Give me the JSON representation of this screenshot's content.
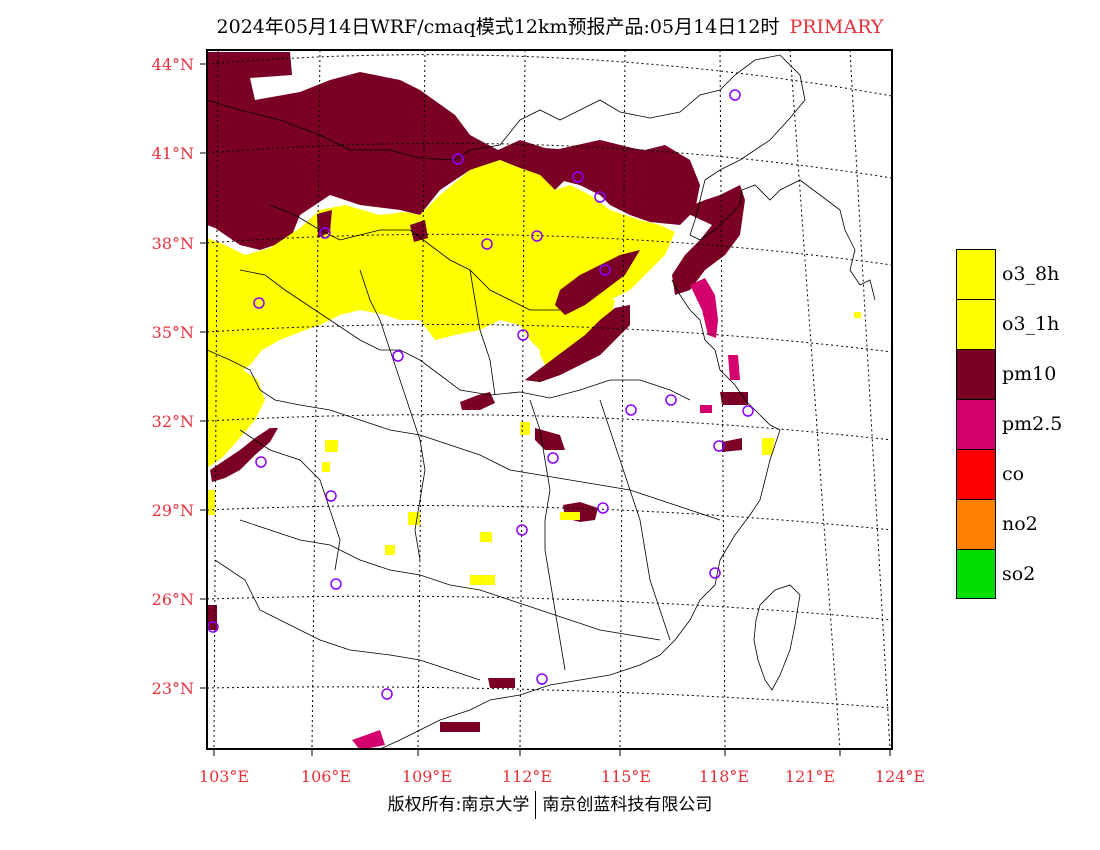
{
  "title": {
    "main": "2024年05月14日WRF/cmaq模式12km预报产品:05月14日12时",
    "tag": "PRIMARY"
  },
  "map": {
    "lat_labels": [
      "44°N",
      "41°N",
      "38°N",
      "35°N",
      "32°N",
      "29°N",
      "26°N",
      "23°N"
    ],
    "lon_labels": [
      "103°E",
      "106°E",
      "109°E",
      "112°E",
      "115°E",
      "118°E",
      "121°E",
      "124°E"
    ],
    "colors": {
      "o3_8h": "#ffff00",
      "o3_1h": "#ffff00",
      "pm10": "#7a0026",
      "pm25": "#d4006e",
      "co": "#ff0000",
      "no2": "#ff7f00",
      "so2": "#00dd00",
      "station": "#8a00ff"
    }
  },
  "legend": [
    {
      "label": "o3_8h",
      "color": "#ffff00"
    },
    {
      "label": "o3_1h",
      "color": "#ffff00"
    },
    {
      "label": "pm10",
      "color": "#7a0026"
    },
    {
      "label": "pm2.5",
      "color": "#d4006e"
    },
    {
      "label": "co",
      "color": "#ff0000"
    },
    {
      "label": "no2",
      "color": "#ff7f00"
    },
    {
      "label": "so2",
      "color": "#00dd00"
    }
  ],
  "footer": {
    "left": "版权所有:南京大学",
    "right": "南京创蓝科技有限公司"
  }
}
